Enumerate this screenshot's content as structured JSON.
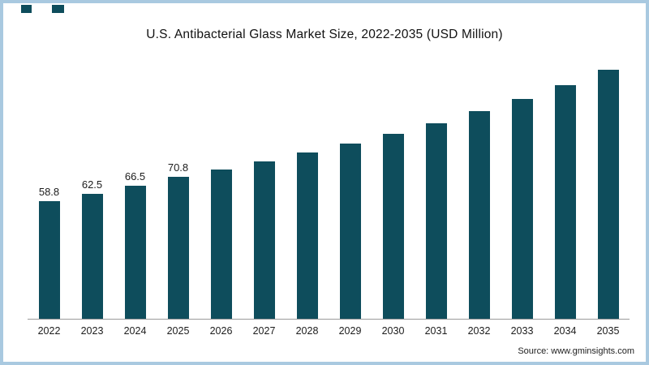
{
  "frame": {
    "border_color": "#a9c9e0",
    "background": "#ffffff"
  },
  "chart_data": {
    "type": "bar",
    "title": "U.S. Antibacterial Glass Market Size, 2022-2035 (USD Million)",
    "categories": [
      "2022",
      "2023",
      "2024",
      "2025",
      "2026",
      "2027",
      "2028",
      "2029",
      "2030",
      "2031",
      "2032",
      "2033",
      "2034",
      "2035"
    ],
    "values": [
      58.8,
      62.5,
      66.5,
      70.8,
      74.6,
      78.6,
      83.0,
      87.6,
      92.5,
      97.8,
      103.5,
      109.8,
      116.7,
      124.2
    ],
    "shown_value_labels": [
      "58.8",
      "62.5",
      "66.5",
      "70.8"
    ],
    "bar_color": "#0e4d5c",
    "axis_line_color": "#9b9b9b",
    "ylim": [
      0,
      130
    ],
    "xlabel": "",
    "ylabel": "",
    "grid": false,
    "legend": "none"
  },
  "source": {
    "text": "Source: www.gminsights.com"
  }
}
